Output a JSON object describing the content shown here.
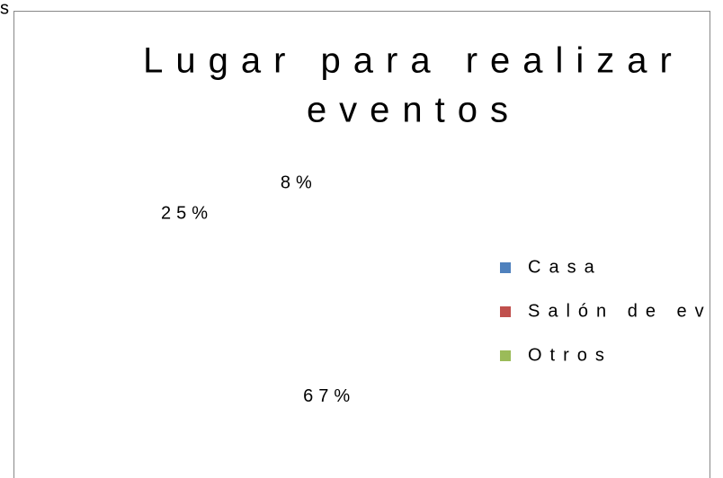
{
  "corner_label": "s",
  "chart_data": {
    "type": "pie",
    "title": [
      "Lugar para realizar",
      "eventos"
    ],
    "categories": [
      "Casa",
      "Salón de eventos",
      "Otros"
    ],
    "values": [
      8,
      67,
      25
    ],
    "value_labels": [
      "8%",
      "67%",
      "25%"
    ],
    "colors": [
      "#4f81bd",
      "#c0504d",
      "#9bbb59"
    ],
    "legend": "right"
  }
}
